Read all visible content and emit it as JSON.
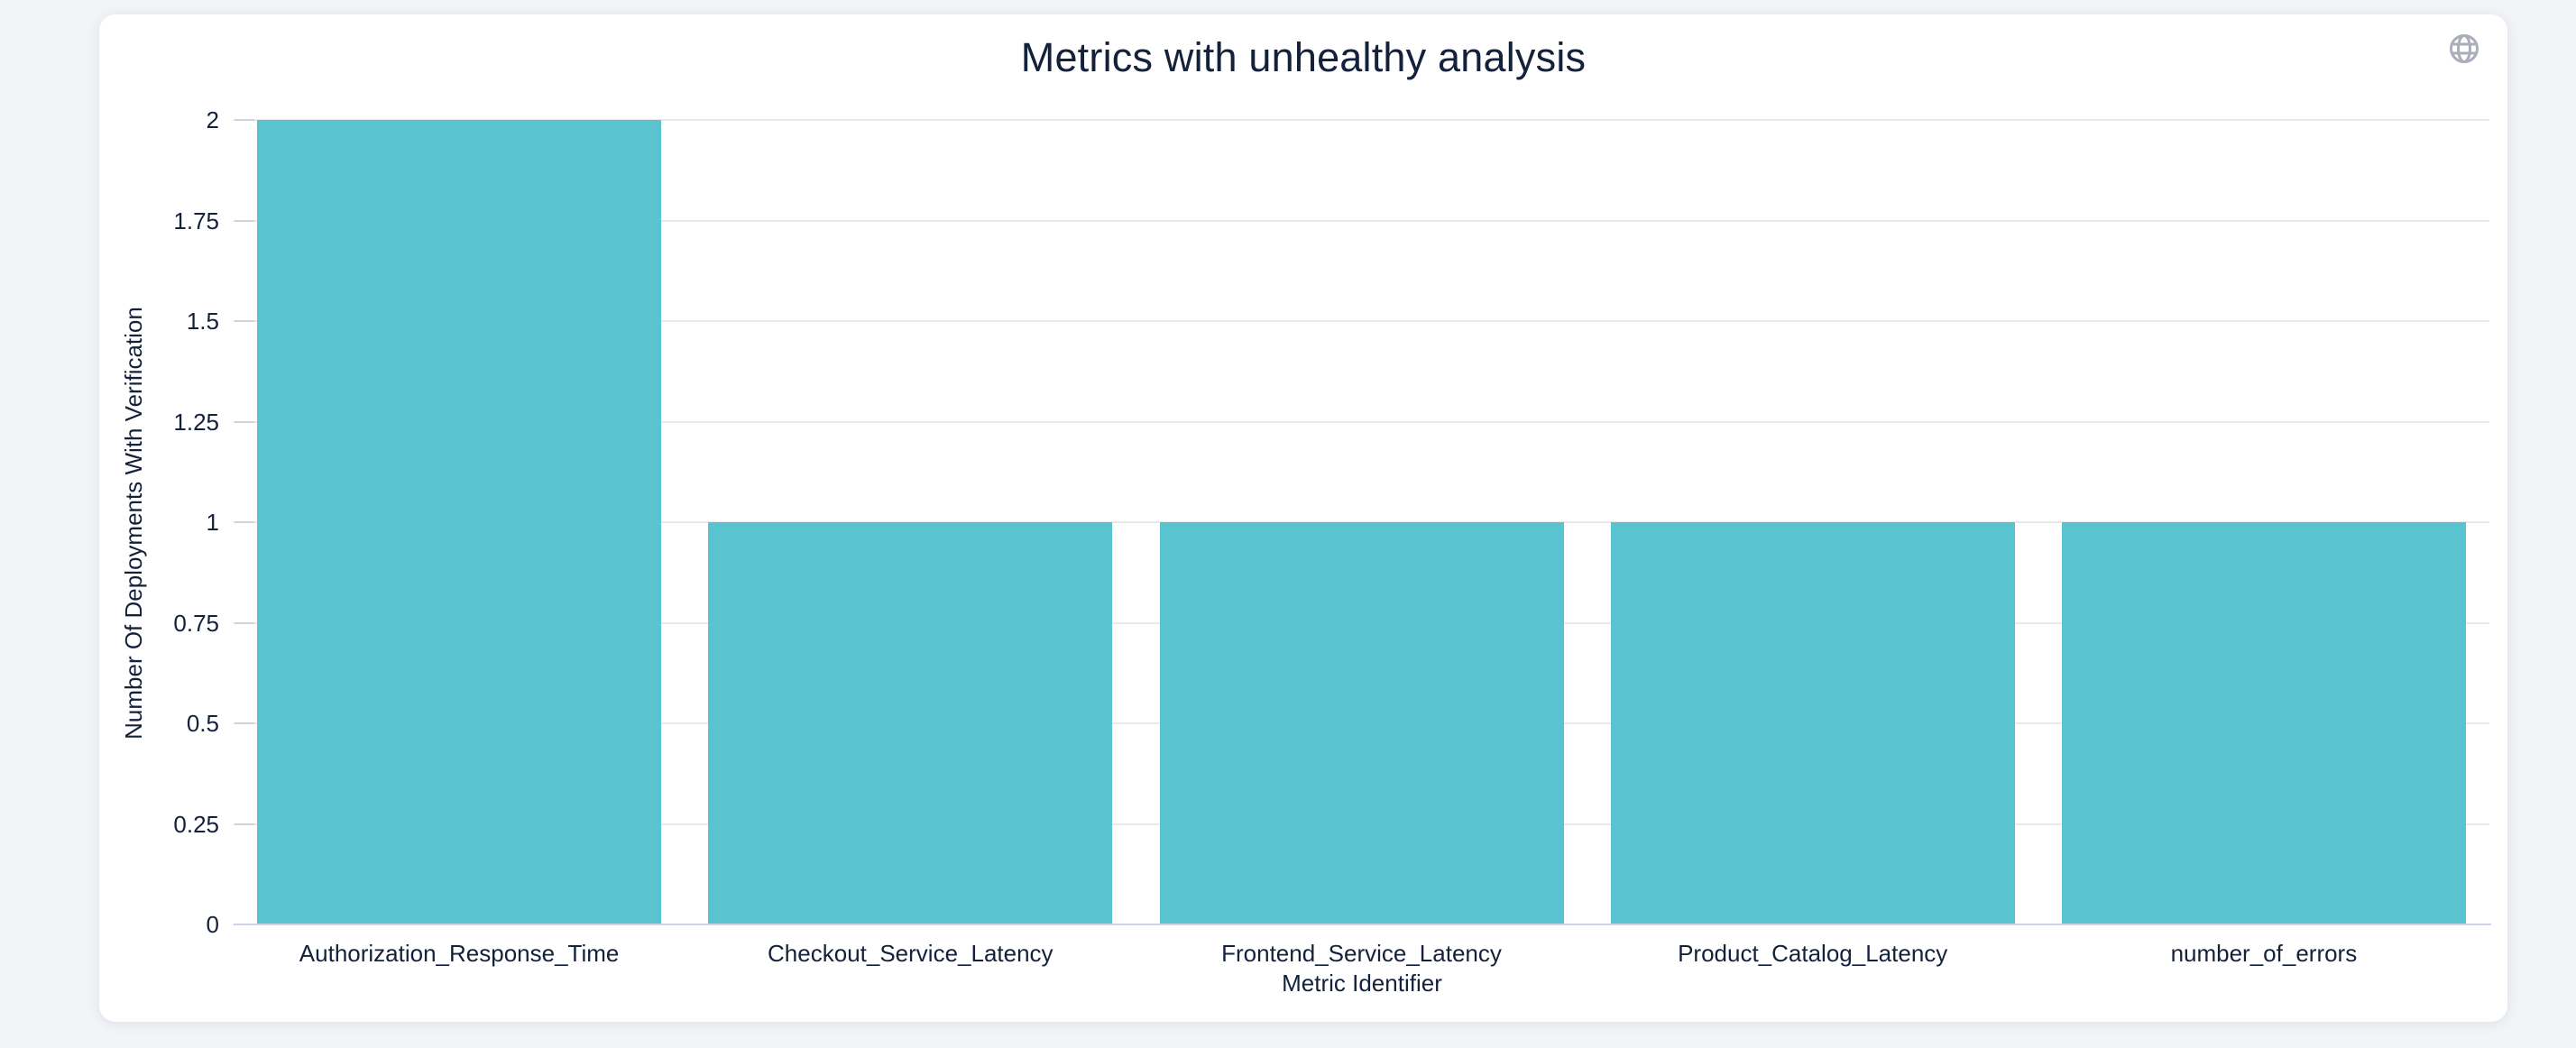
{
  "header": {
    "title": "Metrics with unhealthy analysis"
  },
  "toolbar": {
    "globe_icon": "globe-icon"
  },
  "chart_data": {
    "type": "bar",
    "title": "Metrics with unhealthy analysis",
    "categories": [
      "Authorization_Response_Time",
      "Checkout_Service_Latency",
      "Frontend_Service_Latency",
      "Product_Catalog_Latency",
      "number_of_errors"
    ],
    "values": [
      2,
      1,
      1,
      1,
      1
    ],
    "xlabel": "Metric Identifier",
    "ylabel": "Number Of Deployments With Verification",
    "ylim": [
      0,
      2
    ],
    "ytick_step": 0.25,
    "yticks": [
      "0",
      "0.25",
      "0.5",
      "0.75",
      "1",
      "1.25",
      "1.5",
      "1.75",
      "2"
    ],
    "grid": true,
    "legend_position": "none",
    "bar_color": "#5ac3d0"
  },
  "colors": {
    "page_background": "#f2f4f8",
    "card_background": "#ffffff",
    "bar": "#5ac3d0",
    "gridline": "#e9e9e9",
    "axis_line": "#ccd4ec",
    "text": "#14213b",
    "icon": "#a9aeba"
  }
}
